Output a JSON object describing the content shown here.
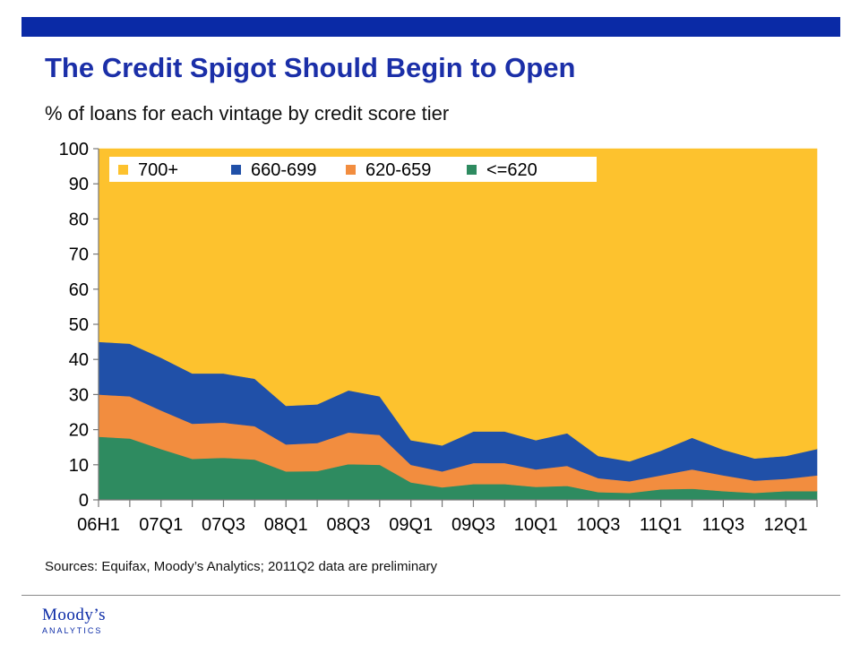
{
  "slide": {
    "title": "The Credit Spigot Should Begin to Open",
    "subtitle": "% of loans for each vintage by credit score tier",
    "sources": "Sources: Equifax, Moody’s Analytics; 2011Q2 data are preliminary",
    "logo_name": "Moody’s",
    "logo_sub": "ANALYTICS"
  },
  "colors": {
    "brand_blue": "#0a2aa6",
    "title_blue": "#1b2fa8",
    "rule_gray": "#8a8a8a"
  },
  "chart_data": {
    "type": "area",
    "stacked": true,
    "categories": [
      "06H1",
      "06H2",
      "07Q1",
      "07Q2",
      "07Q3",
      "07Q4",
      "08Q1",
      "08Q2",
      "08Q3",
      "08Q4",
      "09Q1",
      "09Q2",
      "09Q3",
      "09Q4",
      "10Q1",
      "10Q2",
      "10Q3",
      "10Q4",
      "11Q1",
      "11Q2",
      "11Q3",
      "11Q4",
      "12Q1",
      "12Q2"
    ],
    "tick_labels": [
      "06H1",
      "07Q1",
      "07Q3",
      "08Q1",
      "08Q3",
      "09Q1",
      "09Q3",
      "10Q1",
      "10Q3",
      "11Q1",
      "11Q3",
      "12Q1"
    ],
    "ylim": [
      0,
      100
    ],
    "yticks": [
      0,
      10,
      20,
      30,
      40,
      50,
      60,
      70,
      80,
      90,
      100
    ],
    "grid": false,
    "legend": "top-left",
    "series": [
      {
        "name": "700+",
        "color": "#fdc22e",
        "values": [
          55,
          55.5,
          59.5,
          64,
          64,
          65.5,
          73.2,
          72.8,
          68.8,
          70.5,
          83,
          84.5,
          80.5,
          80.5,
          83,
          81,
          87.5,
          89,
          86,
          82.3,
          85.7,
          88.2,
          87.5,
          85.5
        ]
      },
      {
        "name": "660-699",
        "color": "#2050a8",
        "values": [
          15,
          15,
          15,
          14.3,
          14,
          13.5,
          11,
          11,
          12,
          11,
          7,
          7.4,
          9,
          9,
          8.3,
          9.3,
          6.3,
          5.7,
          7,
          9,
          7.3,
          6.3,
          6.5,
          7.5
        ]
      },
      {
        "name": "620-659",
        "color": "#f28d3f",
        "values": [
          12,
          12,
          11,
          10,
          10,
          9.5,
          7.7,
          8,
          9,
          8.5,
          5,
          4.5,
          6,
          6,
          5,
          5.7,
          4,
          3.3,
          4,
          5.5,
          4.5,
          3.5,
          3.5,
          4.5
        ]
      },
      {
        "name": "<=620",
        "color": "#2e8b60",
        "values": [
          18,
          17.5,
          14.5,
          11.7,
          12,
          11.5,
          8.1,
          8.2,
          10.2,
          10,
          5,
          3.6,
          4.5,
          4.5,
          3.7,
          4,
          2.2,
          2,
          3,
          3.2,
          2.5,
          2,
          2.5,
          2.5
        ]
      }
    ]
  }
}
